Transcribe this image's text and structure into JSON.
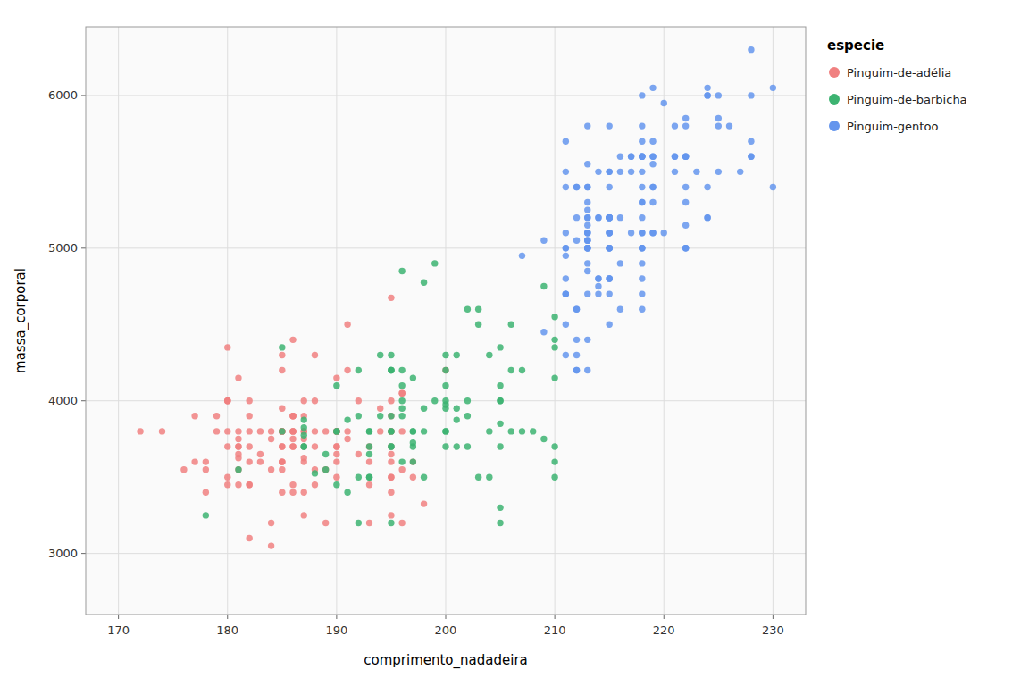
{
  "chart_data": {
    "type": "scatter",
    "xlabel": "comprimento_nadadeira",
    "ylabel": "massa_corporal",
    "legend_title": "especie",
    "xlim": [
      167,
      233
    ],
    "ylim": [
      2600,
      6450
    ],
    "xticks": [
      170,
      180,
      190,
      200,
      210,
      220,
      230
    ],
    "yticks": [
      3000,
      4000,
      5000,
      6000
    ],
    "grid": true,
    "legend": "right",
    "series": [
      {
        "name": "Pinguim-de-adélia",
        "color": "#F08080",
        "x": [
          181,
          186,
          195,
          193,
          190,
          181,
          195,
          193,
          190,
          186,
          180,
          182,
          191,
          198,
          185,
          195,
          197,
          184,
          194,
          174,
          180,
          189,
          185,
          180,
          187,
          183,
          187,
          172,
          180,
          178,
          178,
          188,
          184,
          195,
          196,
          190,
          180,
          181,
          184,
          182,
          195,
          187,
          196,
          196,
          196,
          197,
          190,
          195,
          191,
          186,
          188,
          190,
          200,
          187,
          191,
          186,
          193,
          181,
          194,
          185,
          195,
          185,
          192,
          188,
          182,
          180,
          191,
          180,
          184,
          192,
          188,
          195,
          186,
          190,
          185,
          185,
          179,
          181,
          177,
          182,
          186,
          185,
          195,
          186,
          180,
          185,
          195,
          189,
          193,
          185,
          178,
          185,
          190,
          185,
          185,
          181,
          188,
          195,
          187,
          196,
          183,
          187,
          186,
          183,
          185,
          187,
          181,
          187,
          182,
          184,
          177,
          187,
          186,
          186,
          188,
          176,
          186,
          182,
          182,
          185,
          195,
          190,
          190,
          186,
          182,
          179,
          190,
          181,
          181,
          189,
          187
        ],
        "values": [
          3750,
          3800,
          3250,
          3450,
          3650,
          3625,
          4675,
          3200,
          3800,
          4400,
          3700,
          3450,
          4500,
          3325,
          4200,
          3400,
          3600,
          3800,
          3950,
          3800,
          3800,
          3800,
          4300,
          4000,
          4000,
          3600,
          3800,
          3800,
          4000,
          3400,
          3600,
          4000,
          3200,
          3500,
          3800,
          3600,
          4000,
          3700,
          3550,
          3600,
          3800,
          3750,
          4050,
          3550,
          4050,
          3500,
          3800,
          3900,
          4200,
          3400,
          3800,
          3700,
          4200,
          3600,
          3800,
          3900,
          3600,
          3800,
          3800,
          3600,
          3800,
          3800,
          3650,
          3550,
          3900,
          4350,
          3750,
          3450,
          3750,
          4000,
          3700,
          4000,
          3750,
          3800,
          3600,
          3400,
          3800,
          3700,
          3600,
          3450,
          3800,
          3700,
          3700,
          3450,
          3500,
          3700,
          3600,
          3550,
          3700,
          3800,
          3550,
          3800,
          3500,
          3950,
          3600,
          3550,
          4300,
          3500,
          3700,
          3200,
          3800,
          3800,
          3900,
          3650,
          3550,
          3900,
          4150,
          3250,
          3100,
          3050,
          3900,
          3400,
          3800,
          3700,
          3450,
          3550,
          3700,
          4000,
          3700,
          3800,
          3650,
          3700,
          3800,
          3900,
          3800,
          3900,
          4150,
          3650,
          3450,
          3200,
          3625
        ]
      },
      {
        "name": "Pinguim-de-barbicha",
        "color": "#3CB371",
        "x": [
          192,
          196,
          193,
          188,
          197,
          198,
          178,
          197,
          195,
          198,
          193,
          194,
          185,
          201,
          190,
          201,
          197,
          181,
          190,
          195,
          191,
          187,
          193,
          195,
          197,
          200,
          200,
          191,
          205,
          187,
          201,
          187,
          203,
          195,
          199,
          195,
          210,
          192,
          205,
          210,
          187,
          196,
          196,
          196,
          201,
          190,
          187,
          193,
          195,
          197,
          193,
          192,
          200,
          202,
          193,
          195,
          185,
          207,
          197,
          206,
          206,
          204,
          202,
          205,
          204,
          205,
          205,
          194,
          189,
          209,
          192,
          200,
          198,
          195,
          210,
          196,
          203,
          200,
          200,
          196,
          204,
          202,
          198,
          210,
          210,
          195,
          209,
          200,
          210,
          189,
          200,
          195,
          203,
          210,
          196,
          199,
          200,
          205,
          205,
          206,
          208,
          190,
          207,
          202,
          205
        ],
        "values": [
          3500,
          3900,
          3650,
          3525,
          3725,
          3950,
          3250,
          4150,
          3900,
          4775,
          3700,
          4300,
          4350,
          3950,
          3800,
          4300,
          3700,
          3550,
          3450,
          4200,
          3400,
          3700,
          3800,
          3800,
          3800,
          3975,
          4300,
          3875,
          4100,
          3775,
          3700,
          3825,
          4600,
          3200,
          4000,
          3700,
          3600,
          3200,
          4000,
          4550,
          3875,
          4200,
          4850,
          3600,
          3875,
          4100,
          3700,
          3800,
          3800,
          3800,
          3500,
          3900,
          3800,
          4600,
          3500,
          4200,
          3800,
          4200,
          3600,
          3800,
          4200,
          3500,
          3700,
          4350,
          3800,
          3300,
          3700,
          3900,
          3650,
          4750,
          4200,
          4000,
          3500,
          4200,
          4150,
          3950,
          3500,
          4100,
          4200,
          4000,
          4300,
          4000,
          3800,
          4400,
          4350,
          4300,
          3750,
          3700,
          3700,
          3550,
          3950,
          3700,
          4500,
          3500,
          4100,
          4900,
          3800,
          3200,
          4000,
          4500,
          3800,
          3800,
          3800,
          3900,
          3850
        ]
      },
      {
        "name": "Pinguim-gentoo",
        "color": "#6495ED",
        "x": [
          211,
          211,
          209,
          215,
          213,
          222,
          212,
          212,
          211,
          212,
          213,
          212,
          213,
          212,
          212,
          215,
          212,
          213,
          218,
          213,
          213,
          214,
          213,
          211,
          215,
          215,
          218,
          213,
          212,
          215,
          216,
          211,
          214,
          213,
          212,
          209,
          211,
          217,
          215,
          207,
          215,
          214,
          215,
          213,
          215,
          214,
          213,
          213,
          216,
          211,
          213,
          213,
          215,
          213,
          215,
          215,
          218,
          215,
          213,
          211,
          215,
          216,
          218,
          218,
          211,
          212,
          218,
          211,
          215,
          215,
          216,
          214,
          211,
          213,
          213,
          211,
          217,
          215,
          218,
          213,
          218,
          217,
          218,
          215,
          218,
          216,
          213,
          213,
          215,
          213,
          214,
          218,
          215,
          215,
          215,
          218,
          215,
          218,
          213,
          215,
          213,
          211,
          214,
          213,
          215,
          215,
          218,
          219,
          223,
          225,
          219,
          222,
          220,
          228,
          225,
          219,
          224,
          217,
          218,
          222,
          221,
          222,
          221,
          219,
          218,
          225,
          222,
          222,
          224,
          219,
          228,
          222,
          219,
          224,
          221,
          222,
          218,
          219,
          222,
          219,
          218,
          222,
          230,
          228,
          226,
          224,
          224,
          227,
          228,
          218,
          218,
          219,
          222,
          225,
          220,
          219,
          218,
          224,
          228,
          221,
          230
        ],
        "values": [
          4500,
          5700,
          4450,
          5000,
          5050,
          5150,
          4200,
          5400,
          4950,
          5050,
          5000,
          4300,
          4400,
          4600,
          4600,
          4800,
          5200,
          5800,
          5200,
          5200,
          5400,
          4750,
          5250,
          5100,
          4700,
          5200,
          5400,
          4700,
          4400,
          5000,
          4600,
          4300,
          4800,
          5000,
          4200,
          5050,
          5000,
          5600,
          5000,
          4950,
          4500,
          5500,
          5000,
          4200,
          4800,
          5200,
          5000,
          5050,
          5600,
          4800,
          5200,
          5100,
          5200,
          5000,
          5200,
          5500,
          4600,
          5200,
          5000,
          4700,
          5800,
          4900,
          5300,
          4800,
          4700,
          5400,
          5000,
          5000,
          5100,
          5500,
          5200,
          5200,
          5500,
          5100,
          4900,
          5400,
          5600,
          5100,
          5500,
          5100,
          5100,
          5100,
          4700,
          4800,
          5000,
          5500,
          5300,
          4850,
          5200,
          5050,
          4800,
          4900,
          5100,
          5200,
          5000,
          5600,
          5100,
          5600,
          5150,
          5400,
          5400,
          4700,
          4700,
          5550,
          5200,
          5200,
          5600,
          5600,
          5500,
          6000,
          5400,
          5000,
          5100,
          6300,
          5500,
          5700,
          5400,
          5500,
          5700,
          5600,
          5600,
          5400,
          5500,
          5300,
          5000,
          5850,
          5000,
          5600,
          6050,
          5400,
          6000,
          5000,
          5100,
          6000,
          5600,
          5300,
          5600,
          5550,
          5800,
          5600,
          5800,
          5600,
          5400,
          5600,
          5800,
          5200,
          5200,
          5500,
          5600,
          5300,
          5100,
          5100,
          5850,
          5800,
          5950,
          6050,
          6000,
          6000,
          5700,
          5800,
          6050
        ]
      }
    ]
  }
}
